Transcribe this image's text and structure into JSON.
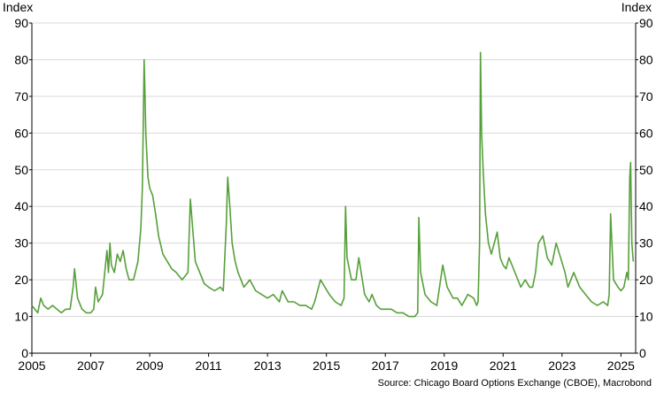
{
  "chart_data": {
    "type": "line",
    "title": "",
    "ylabel_left": "Index",
    "ylabel_right": "Index",
    "xlabel": "",
    "source": "Source: Chicago Board Options Exchange (CBOE), Macrobond",
    "ylim": [
      0,
      90
    ],
    "yticks": [
      0,
      10,
      20,
      30,
      40,
      50,
      60,
      70,
      80,
      90
    ],
    "xlim": [
      2005.0,
      2025.5
    ],
    "xticks": [
      2005,
      2007,
      2009,
      2011,
      2013,
      2015,
      2017,
      2019,
      2021,
      2023,
      2025
    ],
    "grid": "horizontal",
    "color": "#56a03a",
    "series": [
      {
        "name": "",
        "x": [
          2005.0,
          2005.1,
          2005.2,
          2005.3,
          2005.4,
          2005.55,
          2005.7,
          2005.85,
          2006.0,
          2006.15,
          2006.3,
          2006.4,
          2006.45,
          2006.55,
          2006.7,
          2006.85,
          2007.0,
          2007.1,
          2007.16,
          2007.25,
          2007.4,
          2007.55,
          2007.6,
          2007.65,
          2007.7,
          2007.8,
          2007.9,
          2008.0,
          2008.1,
          2008.2,
          2008.3,
          2008.45,
          2008.6,
          2008.7,
          2008.75,
          2008.78,
          2008.81,
          2008.84,
          2008.87,
          2008.9,
          2008.94,
          2009.0,
          2009.1,
          2009.2,
          2009.3,
          2009.45,
          2009.6,
          2009.75,
          2009.9,
          2010.1,
          2010.3,
          2010.38,
          2010.45,
          2010.55,
          2010.7,
          2010.85,
          2011.0,
          2011.2,
          2011.4,
          2011.5,
          2011.6,
          2011.65,
          2011.72,
          2011.8,
          2011.9,
          2012.0,
          2012.2,
          2012.4,
          2012.6,
          2012.8,
          2013.0,
          2013.2,
          2013.4,
          2013.5,
          2013.7,
          2013.9,
          2014.1,
          2014.3,
          2014.5,
          2014.6,
          2014.8,
          2014.95,
          2015.1,
          2015.3,
          2015.5,
          2015.6,
          2015.65,
          2015.7,
          2015.85,
          2016.0,
          2016.1,
          2016.3,
          2016.45,
          2016.55,
          2016.7,
          2016.85,
          2017.0,
          2017.2,
          2017.4,
          2017.6,
          2017.8,
          2018.0,
          2018.1,
          2018.14,
          2018.2,
          2018.35,
          2018.55,
          2018.75,
          2018.95,
          2019.1,
          2019.3,
          2019.45,
          2019.6,
          2019.8,
          2020.0,
          2020.1,
          2020.15,
          2020.2,
          2020.23,
          2020.27,
          2020.32,
          2020.4,
          2020.5,
          2020.6,
          2020.7,
          2020.8,
          2020.9,
          2021.0,
          2021.1,
          2021.2,
          2021.3,
          2021.45,
          2021.6,
          2021.75,
          2021.9,
          2022.0,
          2022.1,
          2022.2,
          2022.35,
          2022.5,
          2022.65,
          2022.8,
          2022.95,
          2023.1,
          2023.2,
          2023.4,
          2023.6,
          2023.8,
          2024.0,
          2024.2,
          2024.4,
          2024.55,
          2024.6,
          2024.65,
          2024.75,
          2024.9,
          2025.0,
          2025.1,
          2025.2,
          2025.25,
          2025.3,
          2025.33,
          2025.37,
          2025.42
        ],
        "y": [
          13,
          12,
          11,
          15,
          13,
          12,
          13,
          12,
          11,
          12,
          12,
          18,
          23,
          15,
          12,
          11,
          11,
          12,
          18,
          14,
          16,
          28,
          22,
          30,
          24,
          22,
          27,
          25,
          28,
          23,
          20,
          20,
          25,
          34,
          45,
          62,
          80,
          70,
          60,
          55,
          48,
          45,
          43,
          38,
          32,
          27,
          25,
          23,
          22,
          20,
          22,
          42,
          35,
          25,
          22,
          19,
          18,
          17,
          18,
          17,
          35,
          48,
          40,
          30,
          25,
          22,
          18,
          20,
          17,
          16,
          15,
          16,
          14,
          17,
          14,
          14,
          13,
          13,
          12,
          14,
          20,
          18,
          16,
          14,
          13,
          15,
          40,
          26,
          20,
          20,
          26,
          16,
          14,
          16,
          13,
          12,
          12,
          12,
          11,
          11,
          10,
          10,
          11,
          37,
          22,
          16,
          14,
          13,
          24,
          18,
          15,
          15,
          13,
          16,
          15,
          13,
          14,
          30,
          82,
          60,
          50,
          38,
          30,
          27,
          30,
          33,
          26,
          24,
          23,
          26,
          24,
          21,
          18,
          20,
          18,
          18,
          22,
          30,
          32,
          26,
          24,
          30,
          26,
          22,
          18,
          22,
          18,
          16,
          14,
          13,
          14,
          13,
          16,
          38,
          20,
          18,
          17,
          18,
          22,
          20,
          48,
          52,
          30,
          25
        ]
      }
    ]
  }
}
